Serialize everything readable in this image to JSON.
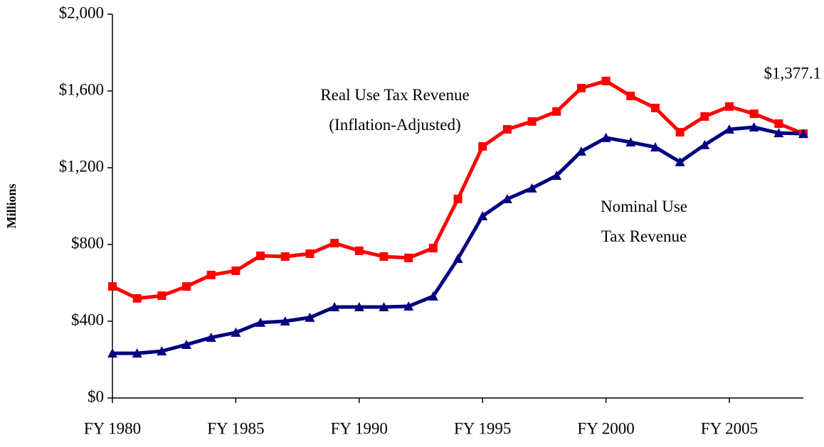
{
  "chart_data": {
    "type": "line",
    "y_label": "Millions",
    "categories": [
      "FY 1980",
      null,
      null,
      null,
      null,
      "FY 1985",
      null,
      null,
      null,
      null,
      "FY 1990",
      null,
      null,
      null,
      null,
      "FY 1995",
      null,
      null,
      null,
      null,
      "FY 2000",
      null,
      null,
      null,
      null,
      "FY 2005",
      null,
      null,
      null
    ],
    "series": [
      {
        "name": "Real Use Tax Revenue\n(Inflation-Adjusted)",
        "color": "#ff0000",
        "marker": "square",
        "values": [
          581,
          519,
          533,
          581,
          641,
          663,
          741,
          737,
          752,
          807,
          767,
          737,
          730,
          781,
          1037,
          1311,
          1400,
          1441,
          1493,
          1615,
          1652,
          1574,
          1511,
          1385,
          1467,
          1519,
          1481,
          1430,
          1377.1
        ],
        "value_labels": [
          null,
          null,
          null,
          null,
          null,
          null,
          null,
          null,
          null,
          null,
          null,
          null,
          null,
          null,
          null,
          null,
          null,
          null,
          null,
          null,
          null,
          null,
          null,
          null,
          null,
          null,
          null,
          null,
          "$1,377.1"
        ]
      },
      {
        "name": "Nominal Use\nTax Revenue",
        "color": "#000080",
        "marker": "triangle",
        "values": [
          233,
          233,
          244,
          278,
          315,
          341,
          393,
          400,
          419,
          474,
          474,
          474,
          478,
          530,
          726,
          948,
          1037,
          1093,
          1159,
          1285,
          1356,
          1333,
          1307,
          1230,
          1319,
          1400,
          1411,
          1381,
          1377.1
        ]
      }
    ],
    "ylim": [
      0,
      2000
    ],
    "yticks": [
      {
        "value": 0,
        "label": "$0"
      },
      {
        "value": 400,
        "label": "$400"
      },
      {
        "value": 800,
        "label": "$800"
      },
      {
        "value": 1200,
        "label": "$1,200"
      },
      {
        "value": 1600,
        "label": "$1,600"
      },
      {
        "value": 2000,
        "label": "$2,000"
      }
    ],
    "grid": false
  }
}
